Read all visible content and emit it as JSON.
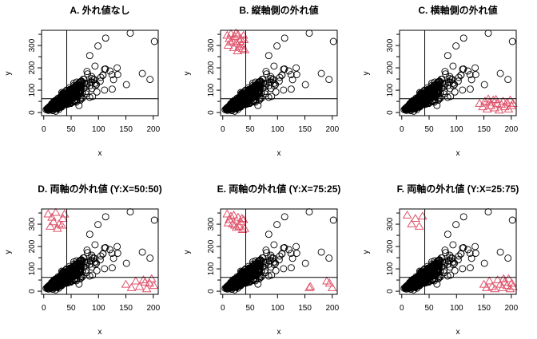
{
  "chart_data": [
    {
      "type": "scatter",
      "title": "A. 外れ値なし",
      "xlabel": "x",
      "ylabel": "y",
      "outliers": []
    },
    {
      "type": "scatter",
      "title": "B. 縦軸側の外れ値",
      "xlabel": "x",
      "ylabel": "y",
      "outliers": [
        [
          8,
          345
        ],
        [
          12,
          330
        ],
        [
          15,
          352
        ],
        [
          18,
          320
        ],
        [
          22,
          340
        ],
        [
          25,
          310
        ],
        [
          28,
          348
        ],
        [
          30,
          295
        ],
        [
          33,
          330
        ],
        [
          35,
          305
        ],
        [
          38,
          345
        ],
        [
          40,
          280
        ],
        [
          10,
          300
        ],
        [
          20,
          290
        ],
        [
          27,
          275
        ],
        [
          36,
          285
        ],
        [
          14,
          315
        ],
        [
          31,
          318
        ],
        [
          24,
          355
        ],
        [
          39,
          325
        ]
      ]
    },
    {
      "type": "scatter",
      "title": "C. 横軸側の外れ値",
      "xlabel": "x",
      "ylabel": "y",
      "outliers": [
        [
          142,
          40
        ],
        [
          148,
          25
        ],
        [
          152,
          50
        ],
        [
          156,
          15
        ],
        [
          160,
          45
        ],
        [
          163,
          30
        ],
        [
          167,
          55
        ],
        [
          170,
          20
        ],
        [
          174,
          40
        ],
        [
          178,
          10
        ],
        [
          182,
          35
        ],
        [
          185,
          50
        ],
        [
          188,
          25
        ],
        [
          192,
          45
        ],
        [
          195,
          15
        ],
        [
          198,
          55
        ],
        [
          200,
          30
        ],
        [
          203,
          40
        ],
        [
          158,
          60
        ],
        [
          172,
          58
        ]
      ]
    },
    {
      "type": "scatter",
      "title": "D. 両軸の外れ値 (Y:X=50:50)",
      "xlabel": "x",
      "ylabel": "y",
      "outliers": [
        [
          8,
          345
        ],
        [
          15,
          330
        ],
        [
          22,
          352
        ],
        [
          28,
          300
        ],
        [
          35,
          325
        ],
        [
          12,
          290
        ],
        [
          25,
          280
        ],
        [
          38,
          345
        ],
        [
          18,
          310
        ],
        [
          33,
          295
        ],
        [
          150,
          30
        ],
        [
          160,
          15
        ],
        [
          168,
          45
        ],
        [
          175,
          20
        ],
        [
          182,
          50
        ],
        [
          188,
          10
        ],
        [
          193,
          35
        ],
        [
          197,
          55
        ],
        [
          201,
          25
        ],
        [
          185,
          40
        ]
      ]
    },
    {
      "type": "scatter",
      "title": "E. 両軸の外れ値 (Y:X=75:25)",
      "xlabel": "x",
      "ylabel": "y",
      "outliers": [
        [
          8,
          345
        ],
        [
          12,
          320
        ],
        [
          15,
          335
        ],
        [
          18,
          300
        ],
        [
          22,
          295
        ],
        [
          28,
          330
        ],
        [
          30,
          290
        ],
        [
          33,
          310
        ],
        [
          36,
          275
        ],
        [
          38,
          320
        ],
        [
          25,
          285
        ],
        [
          10,
          305
        ],
        [
          35,
          325
        ],
        [
          20,
          340
        ],
        [
          40,
          280
        ],
        [
          158,
          15
        ],
        [
          160,
          20
        ],
        [
          190,
          45
        ],
        [
          195,
          35
        ],
        [
          200,
          15
        ]
      ]
    },
    {
      "type": "scatter",
      "title": "F. 両軸の外れ値 (Y:X=25:75)",
      "xlabel": "x",
      "ylabel": "y",
      "outliers": [
        [
          10,
          340
        ],
        [
          18,
          300
        ],
        [
          25,
          325
        ],
        [
          32,
          290
        ],
        [
          38,
          335
        ],
        [
          150,
          30
        ],
        [
          155,
          15
        ],
        [
          160,
          45
        ],
        [
          165,
          20
        ],
        [
          170,
          10
        ],
        [
          175,
          50
        ],
        [
          180,
          30
        ],
        [
          184,
          15
        ],
        [
          188,
          40
        ],
        [
          192,
          25
        ],
        [
          195,
          55
        ],
        [
          198,
          10
        ],
        [
          201,
          35
        ],
        [
          203,
          20
        ],
        [
          186,
          55
        ]
      ]
    }
  ],
  "shared": {
    "xlim": [
      -4,
      209
    ],
    "ylim": [
      -14,
      368
    ],
    "xticks": [
      0,
      50,
      100,
      150,
      200
    ],
    "yticks": [
      0,
      100,
      200,
      300
    ],
    "vline_x": 42,
    "hline_y": 62,
    "main_points_color": "#000000",
    "outlier_color": "#DF536B",
    "main_marker": "circle",
    "outlier_marker": "triangle",
    "extreme_points": [
      [
        158,
        355
      ],
      [
        202,
        318
      ],
      [
        113,
        333
      ],
      [
        180,
        175
      ],
      [
        194,
        148
      ],
      [
        151,
        125
      ],
      [
        134,
        200
      ],
      [
        135,
        170
      ],
      [
        125,
        105
      ],
      [
        99,
        298
      ],
      [
        84,
        255
      ]
    ]
  }
}
